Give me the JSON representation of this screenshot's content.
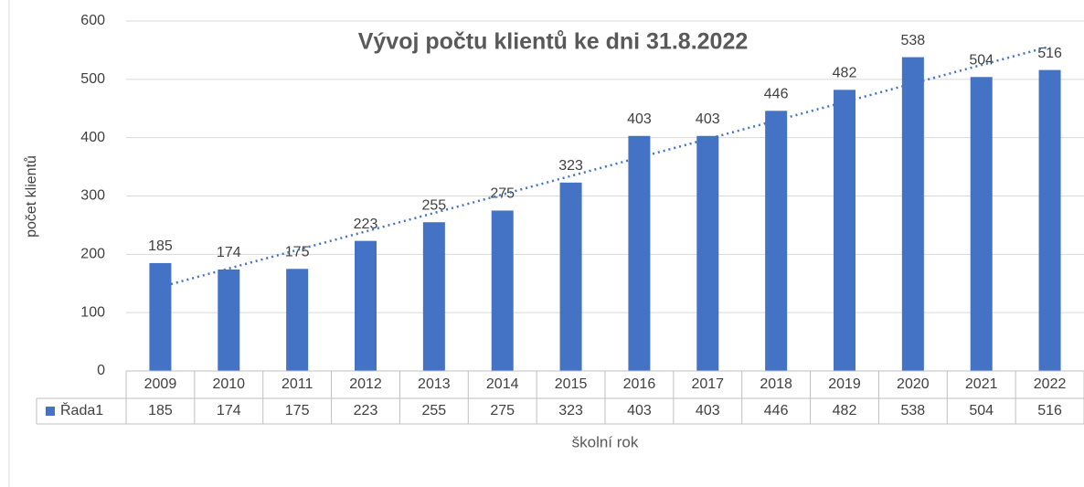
{
  "chart_data": {
    "type": "bar",
    "title": "Vývoj počtu klientů ke dni 31.8.2022",
    "x_label": "školní rok",
    "y_label": "počet klientů",
    "categories": [
      "2009",
      "2010",
      "2011",
      "2012",
      "2013",
      "2014",
      "2015",
      "2016",
      "2017",
      "2018",
      "2019",
      "2020",
      "2021",
      "2022"
    ],
    "series": [
      {
        "name": "Řada1",
        "color": "#4472c4",
        "values": [
          185,
          174,
          175,
          223,
          255,
          275,
          323,
          403,
          403,
          446,
          482,
          538,
          504,
          516
        ]
      }
    ],
    "ylim": [
      0,
      600
    ],
    "yticks": [
      0,
      100,
      200,
      300,
      400,
      500,
      600
    ],
    "grid": true,
    "trendline": "linear",
    "data_labels": true,
    "data_table": true
  }
}
